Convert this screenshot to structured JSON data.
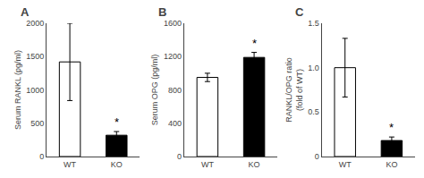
{
  "chart_data": [
    {
      "type": "bar",
      "title": "A",
      "ylabel": "Serum RANKL (pg/ml)",
      "categories": [
        "WT",
        "KO"
      ],
      "values": [
        1420,
        320
      ],
      "errors": [
        580,
        55
      ],
      "colors": [
        "white",
        "black"
      ],
      "ylim": [
        0,
        2000
      ],
      "yticks": [
        0,
        500,
        1000,
        1500,
        2000
      ],
      "grid": false,
      "annotations": [
        {
          "text": "*",
          "x": "KO"
        }
      ]
    },
    {
      "type": "bar",
      "title": "B",
      "ylabel": "Serum OPG (pg/ml)",
      "categories": [
        "WT",
        "KO"
      ],
      "values": [
        950,
        1190
      ],
      "errors": [
        50,
        60
      ],
      "colors": [
        "white",
        "black"
      ],
      "ylim": [
        0,
        1600
      ],
      "yticks": [
        0,
        400,
        800,
        1200,
        1600
      ],
      "grid": false,
      "annotations": [
        {
          "text": "*",
          "x": "KO"
        }
      ]
    },
    {
      "type": "bar",
      "title": "C",
      "ylabel": "RANKL/OPG ratio\n(fold of WT)",
      "categories": [
        "WT",
        "KO"
      ],
      "values": [
        1.0,
        0.18
      ],
      "errors": [
        0.33,
        0.04
      ],
      "colors": [
        "white",
        "black"
      ],
      "ylim": [
        0,
        1.5
      ],
      "yticks": [
        0,
        0.5,
        {
          "value": 1.0,
          "label": "1.0"
        },
        1.5
      ],
      "grid": false,
      "annotations": [
        {
          "text": "*",
          "x": "KO"
        }
      ]
    }
  ]
}
